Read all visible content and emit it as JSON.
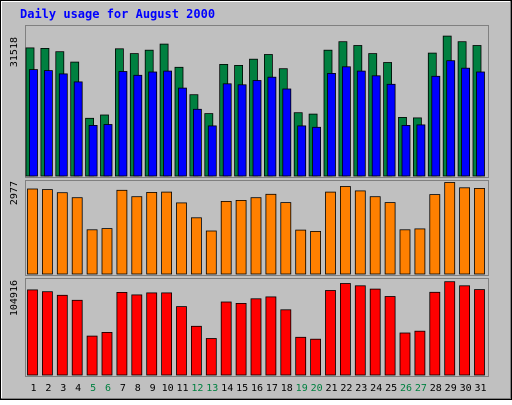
{
  "title": "Daily usage for August 2000",
  "chart_data": [
    {
      "type": "bar",
      "panel": "hits-files",
      "axis_max_label": "31518",
      "ylim": [
        0,
        31518
      ],
      "categories": [
        "1",
        "2",
        "3",
        "4",
        "5",
        "6",
        "7",
        "8",
        "9",
        "10",
        "11",
        "12",
        "13",
        "14",
        "15",
        "16",
        "17",
        "18",
        "19",
        "20",
        "21",
        "22",
        "23",
        "24",
        "25",
        "26",
        "27",
        "28",
        "29",
        "30",
        "31"
      ],
      "weekend_days": [
        "5",
        "6",
        "12",
        "13",
        "19",
        "20",
        "26",
        "27"
      ],
      "series": [
        {
          "color": "#008040",
          "values": [
            27100,
            27000,
            26300,
            24100,
            12200,
            12900,
            26900,
            25900,
            26600,
            27900,
            23000,
            17200,
            13200,
            23600,
            23400,
            24700,
            25700,
            22700,
            13400,
            13100,
            26600,
            28400,
            27600,
            25900,
            24000,
            12400,
            12300,
            26000,
            29600,
            28400,
            27600
          ]
        },
        {
          "color": "#0000ff",
          "values": [
            22500,
            22300,
            21600,
            19900,
            10700,
            10900,
            22100,
            21300,
            22000,
            22200,
            18600,
            14100,
            10600,
            19500,
            19300,
            20200,
            20900,
            18400,
            10600,
            10300,
            21700,
            23100,
            22200,
            21200,
            19400,
            10700,
            10800,
            21100,
            24400,
            22800,
            22000
          ]
        }
      ]
    },
    {
      "type": "bar",
      "panel": "visits",
      "axis_max_label": "2977",
      "ylim": [
        0,
        2977
      ],
      "categories": [
        "1",
        "2",
        "3",
        "4",
        "5",
        "6",
        "7",
        "8",
        "9",
        "10",
        "11",
        "12",
        "13",
        "14",
        "15",
        "16",
        "17",
        "18",
        "19",
        "20",
        "21",
        "22",
        "23",
        "24",
        "25",
        "26",
        "27",
        "28",
        "29",
        "30",
        "31"
      ],
      "series": [
        {
          "color": "#ff8000",
          "values": [
            2750,
            2730,
            2630,
            2470,
            1430,
            1470,
            2710,
            2500,
            2640,
            2650,
            2300,
            1820,
            1390,
            2350,
            2380,
            2470,
            2580,
            2310,
            1420,
            1380,
            2650,
            2830,
            2690,
            2500,
            2310,
            1430,
            1460,
            2570,
            2960,
            2790,
            2770
          ]
        }
      ]
    },
    {
      "type": "bar",
      "panel": "kbytes",
      "axis_max_label": "104916",
      "ylim": [
        0,
        104916
      ],
      "categories": [
        "1",
        "2",
        "3",
        "4",
        "5",
        "6",
        "7",
        "8",
        "9",
        "10",
        "11",
        "12",
        "13",
        "14",
        "15",
        "16",
        "17",
        "18",
        "19",
        "20",
        "21",
        "22",
        "23",
        "24",
        "25",
        "26",
        "27",
        "28",
        "29",
        "30",
        "31"
      ],
      "series": [
        {
          "color": "#ff0000",
          "values": [
            94000,
            92000,
            88000,
            82500,
            43000,
            47000,
            91200,
            88500,
            90700,
            90700,
            75500,
            53800,
            40300,
            80600,
            79100,
            84100,
            86200,
            72000,
            41600,
            39500,
            93300,
            101000,
            98500,
            94900,
            86700,
            46400,
            48400,
            91300,
            103000,
            98500,
            94300
          ]
        }
      ]
    }
  ],
  "colors": {
    "frame_bg": "#c0c0c0",
    "plot_bg": "#c0c0c0",
    "title": "#0000ff",
    "weekday_label": "#000000",
    "weekend_label": "#008040",
    "bar_outline": "#000000"
  }
}
